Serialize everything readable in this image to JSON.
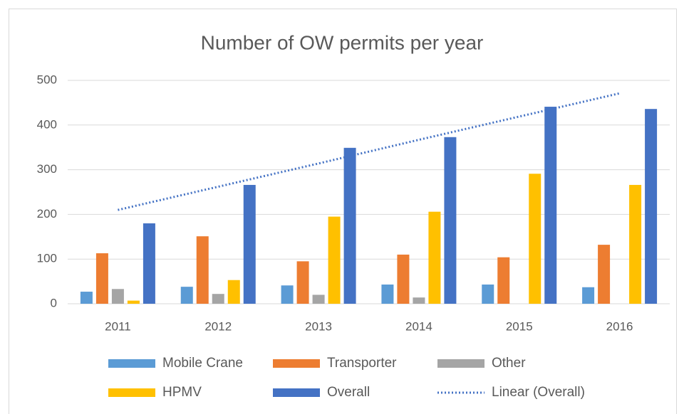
{
  "chart_data": {
    "type": "bar",
    "title": "Number of OW permits per year",
    "categories": [
      "2011",
      "2012",
      "2013",
      "2014",
      "2015",
      "2016"
    ],
    "series": [
      {
        "name": "Mobile Crane",
        "color": "#5b9bd5",
        "values": [
          27,
          38,
          41,
          43,
          43,
          37
        ]
      },
      {
        "name": "Transporter",
        "color": "#ed7d31",
        "values": [
          113,
          151,
          95,
          110,
          104,
          132
        ]
      },
      {
        "name": "Other",
        "color": "#a5a5a5",
        "values": [
          33,
          22,
          20,
          14,
          0,
          0
        ]
      },
      {
        "name": "HPMV",
        "color": "#ffc000",
        "values": [
          7,
          53,
          195,
          206,
          291,
          266
        ]
      },
      {
        "name": "Overall",
        "color": "#4472c4",
        "values": [
          180,
          266,
          349,
          373,
          441,
          436
        ]
      },
      {
        "name": "Linear (Overall)",
        "color": "#4472c4",
        "line_style": "dotted",
        "values": [
          210,
          262,
          314,
          367,
          419,
          471
        ]
      }
    ],
    "ylim": [
      0,
      500
    ],
    "yticks": [
      0,
      100,
      200,
      300,
      400,
      500
    ],
    "grid": true,
    "legend": "bottom"
  }
}
